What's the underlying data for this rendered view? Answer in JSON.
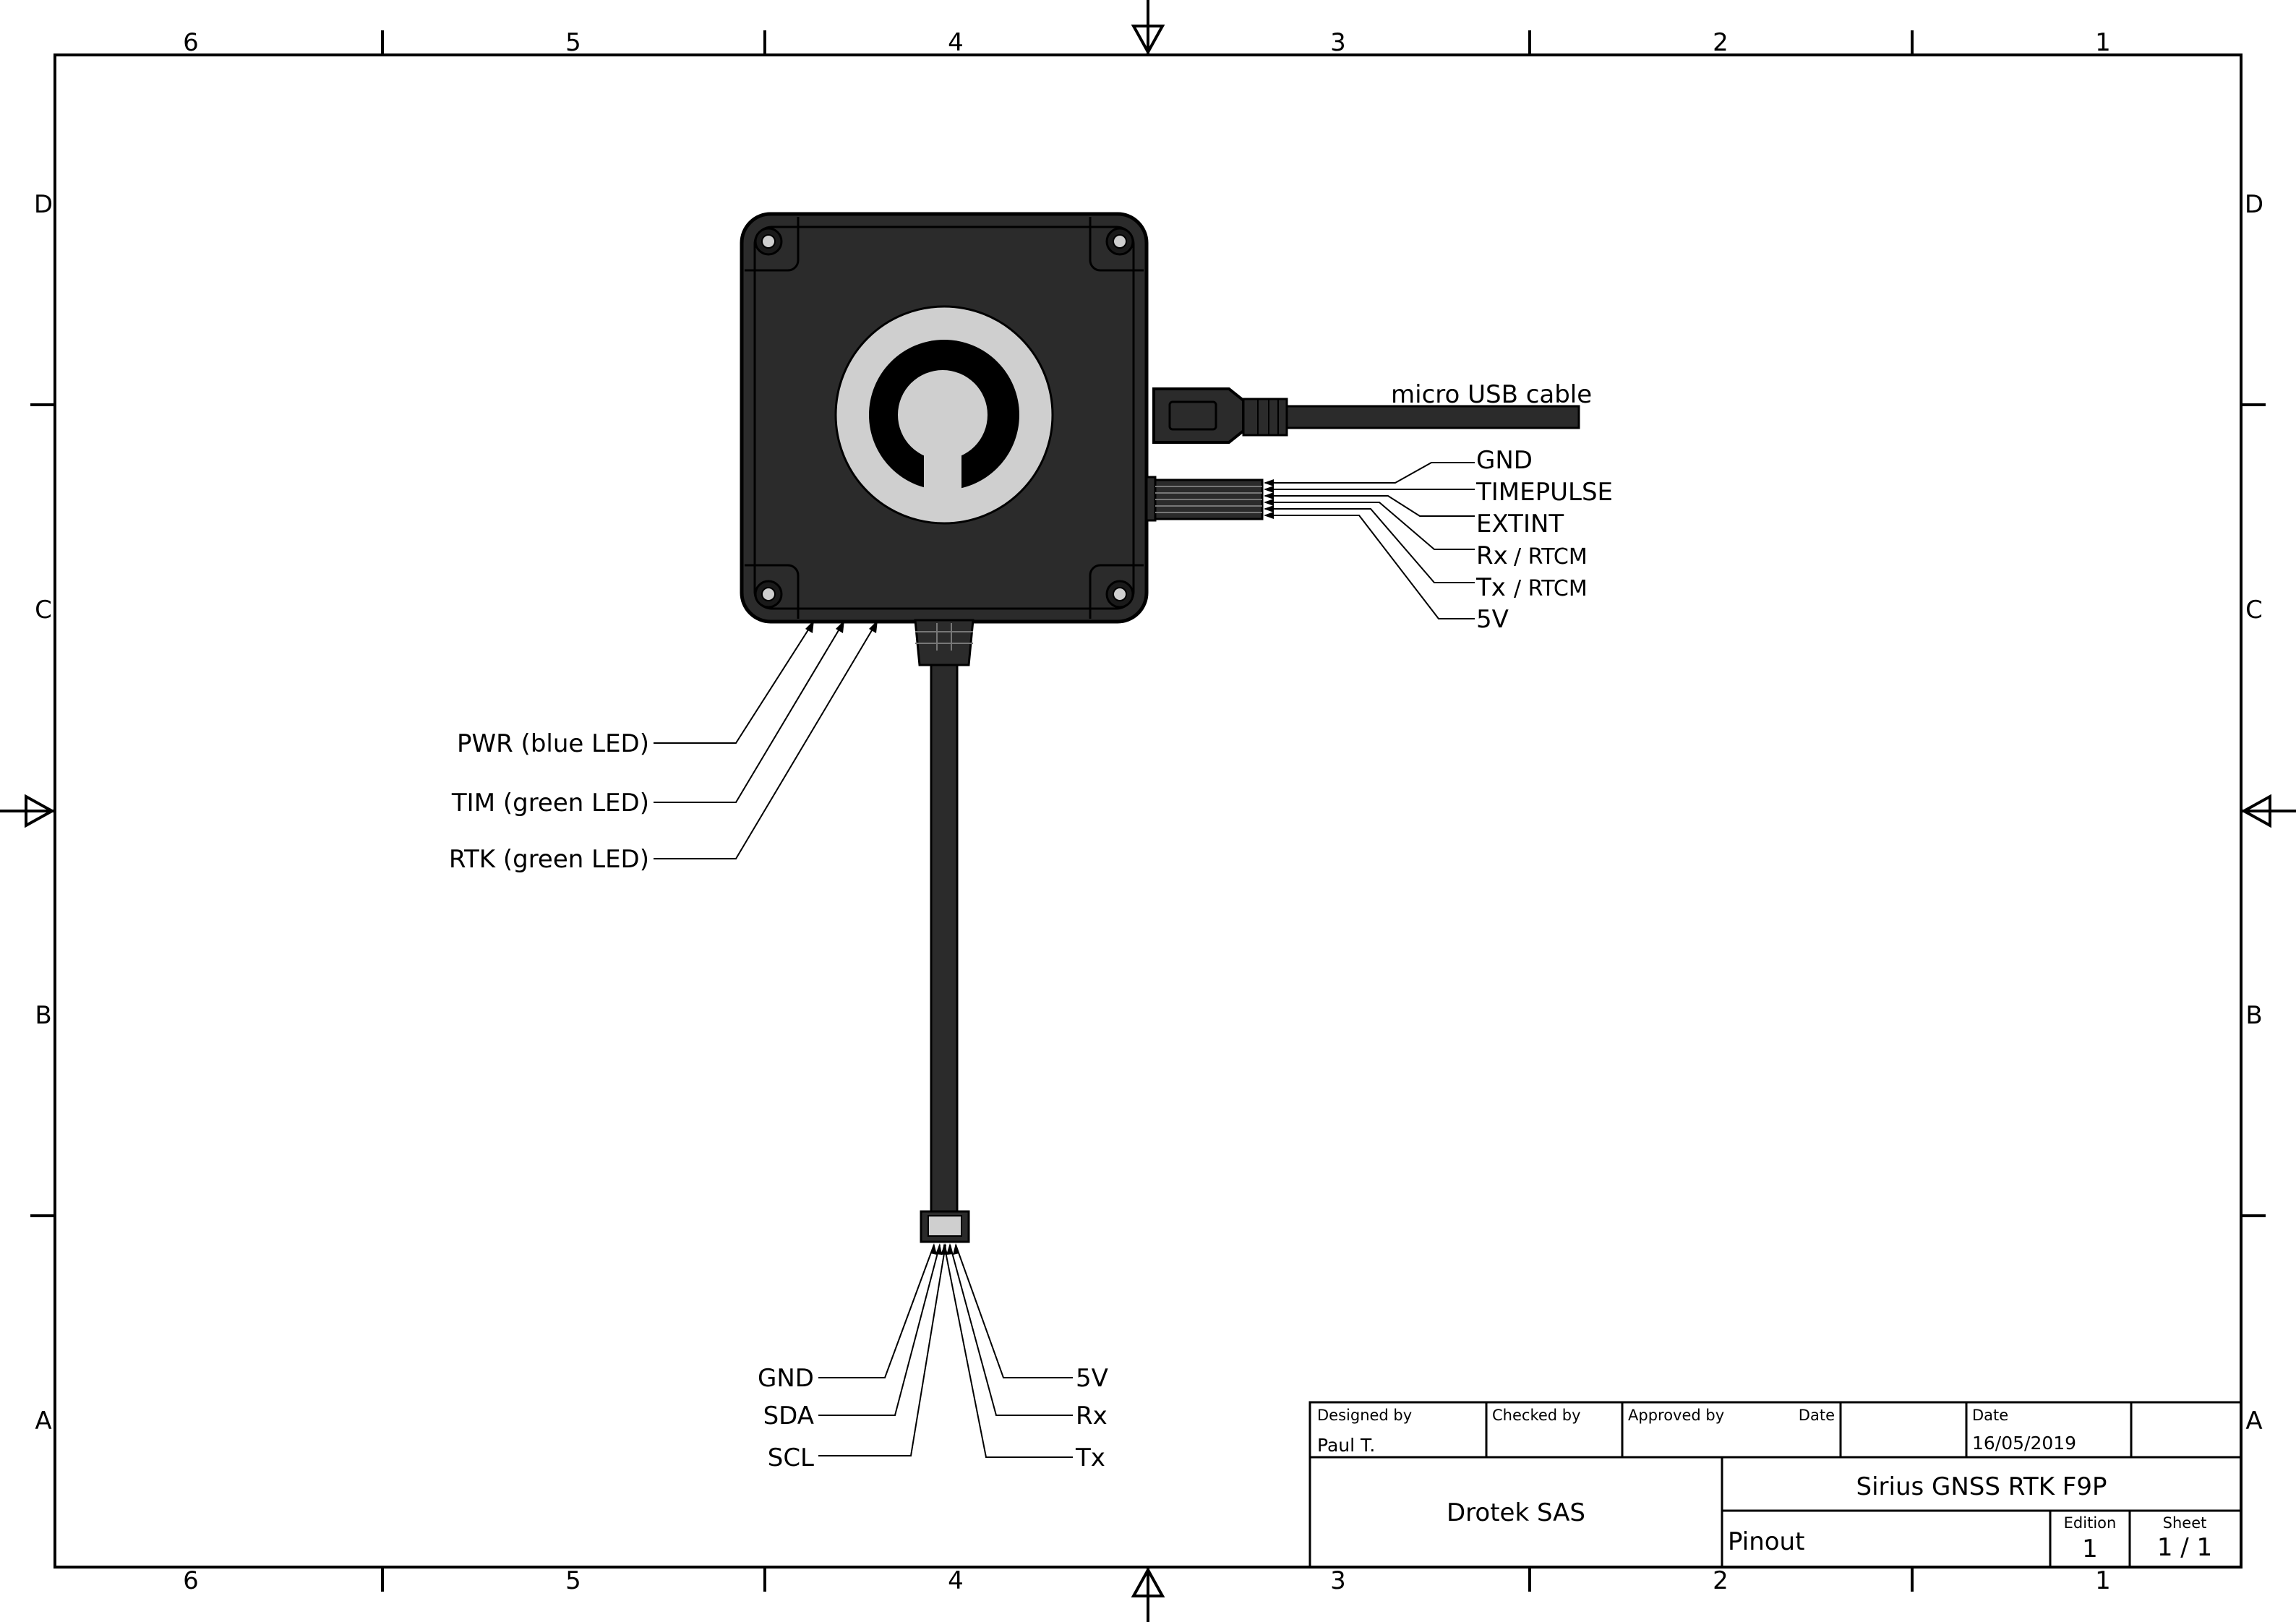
{
  "border": {
    "columns": [
      "6",
      "5",
      "4",
      "3",
      "2",
      "1"
    ],
    "rows": [
      "D",
      "C",
      "B",
      "A"
    ]
  },
  "device_labels": {
    "usb_cable": "micro USB cable",
    "right_pins": [
      "GND",
      "TIMEPULSE",
      "EXTINT",
      "Rx",
      "Tx",
      "5V"
    ],
    "rtcm_suffix": "/ RTCM",
    "leds": [
      "PWR (blue LED)",
      "TIM (green LED)",
      "RTK (green LED)"
    ],
    "bottom_left_pins": [
      "GND",
      "SDA",
      "SCL"
    ],
    "bottom_right_pins": [
      "5V",
      "Rx",
      "Tx"
    ]
  },
  "title_block": {
    "designed_by_label": "Designed by",
    "designed_by": "Paul T.",
    "checked_by_label": "Checked by",
    "approved_by_label": "Approved by",
    "date_label_1": "Date",
    "date_label_2": "Date",
    "date": "16/05/2019",
    "company": "Drotek SAS",
    "product": "Sirius GNSS RTK F9P",
    "doc_type": "Pinout",
    "edition_label": "Edition",
    "edition": "1",
    "sheet_label": "Sheet",
    "sheet": "1 / 1"
  }
}
